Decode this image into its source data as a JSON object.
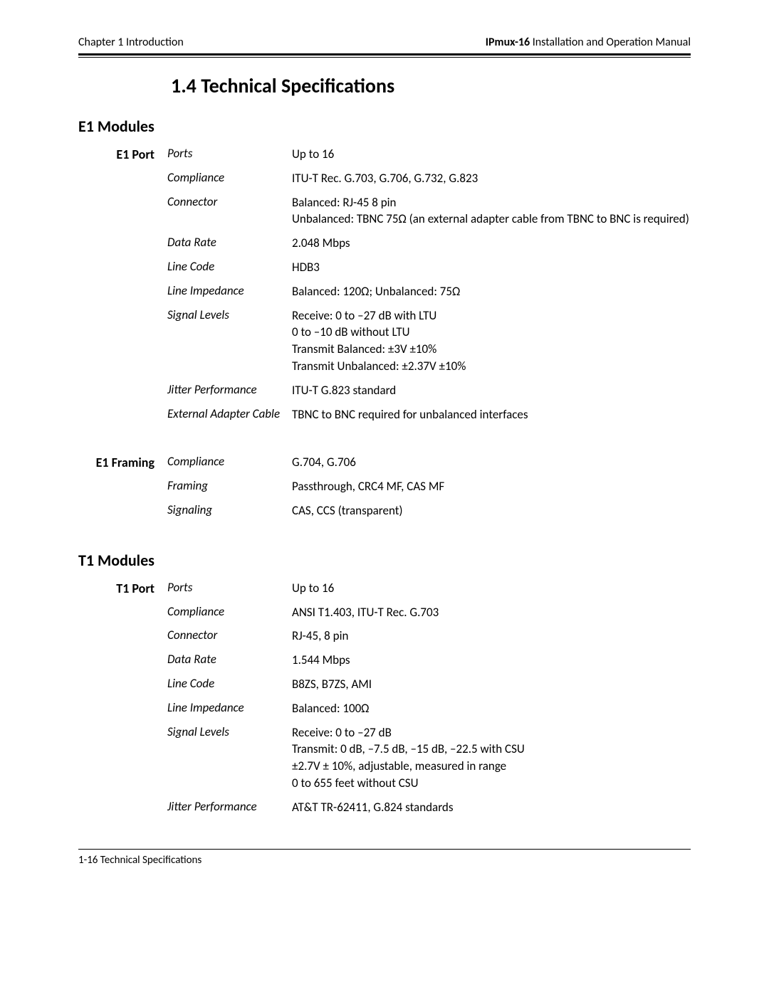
{
  "colors": {
    "text": "#000000",
    "background": "#ffffff",
    "rule": "#000000"
  },
  "typography": {
    "base_family": "Segoe UI / Optima / Candara",
    "body_size_pt": 12,
    "section_title_size_pt": 20,
    "module_title_size_pt": 16,
    "group_label_size_pt": 13,
    "spec_label_size_pt": 12,
    "spec_value_size_pt": 12,
    "footer_size_pt": 11
  },
  "header": {
    "left": "Chapter 1  Introduction",
    "right_bold": "IPmux-16",
    "right_rest": " Installation and Operation Manual"
  },
  "section_title": "1.4  Technical Specifications",
  "modules": [
    {
      "title": "E1 Modules",
      "groups": [
        {
          "label": "E1 Port",
          "rows": [
            {
              "label": "Ports",
              "value": "Up to 16"
            },
            {
              "label": "Compliance",
              "value": "ITU-T Rec. G.703, G.706, G.732, G.823"
            },
            {
              "label": "Connector",
              "value": "Balanced: RJ-45 8 pin\nUnbalanced: TBNC 75Ω (an external adapter cable from TBNC to BNC is required)"
            },
            {
              "label": "Data Rate",
              "value": "2.048 Mbps"
            },
            {
              "label": "Line Code",
              "value": "HDB3"
            },
            {
              "label": "Line Impedance",
              "value": "Balanced: 120Ω; Unbalanced: 75Ω"
            },
            {
              "label": "Signal Levels",
              "value": "Receive: 0 to –27 dB with LTU\n              0 to –10 dB without LTU\nTransmit Balanced: ±3V ±10%\nTransmit Unbalanced: ±2.37V ±10%"
            },
            {
              "label": "Jitter Performance",
              "value": "ITU-T G.823 standard"
            },
            {
              "label": "External Adapter Cable",
              "value": "TBNC to BNC required for unbalanced interfaces"
            }
          ]
        },
        {
          "label": "E1 Framing",
          "rows": [
            {
              "label": "Compliance",
              "value": "G.704, G.706"
            },
            {
              "label": "Framing",
              "value": "Passthrough, CRC4 MF, CAS MF"
            },
            {
              "label": "Signaling",
              "value": "CAS, CCS (transparent)"
            }
          ]
        }
      ]
    },
    {
      "title": "T1 Modules",
      "groups": [
        {
          "label": "T1 Port",
          "rows": [
            {
              "label": "Ports",
              "value": "Up to 16"
            },
            {
              "label": "Compliance",
              "value": "ANSI T1.403, ITU-T Rec. G.703"
            },
            {
              "label": "Connector",
              "value": "RJ-45, 8 pin"
            },
            {
              "label": "Data Rate",
              "value": "1.544 Mbps"
            },
            {
              "label": "Line Code",
              "value": "B8ZS, B7ZS, AMI"
            },
            {
              "label": "Line Impedance",
              "value": "Balanced: 100Ω"
            },
            {
              "label": "Signal Levels",
              "value": "Receive: 0 to –27 dB\nTransmit: 0 dB, –7.5 dB, –15 dB, –22.5 with CSU\n              ±2.7V ± 10%, adjustable, measured in range\n              0 to 655 feet without CSU"
            },
            {
              "label": "Jitter Performance",
              "value": "AT&T TR-62411, G.824 standards"
            }
          ]
        }
      ]
    }
  ],
  "footer": "1-16 Technical Specifications"
}
